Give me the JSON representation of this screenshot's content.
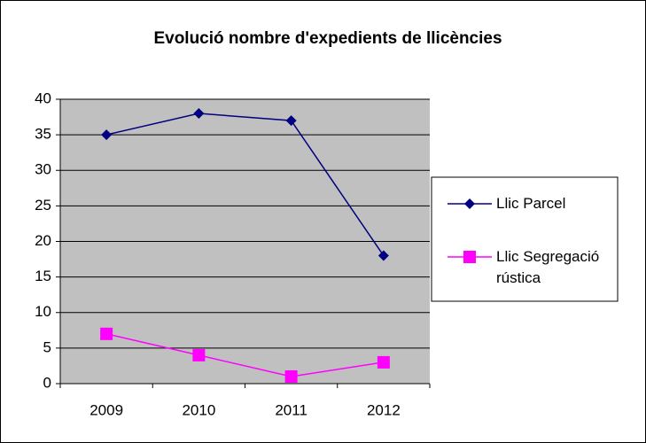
{
  "chart_data": {
    "type": "line",
    "title": "Evolució nombre d'expedients de llicències",
    "categories": [
      "2009",
      "2010",
      "2011",
      "2012"
    ],
    "series": [
      {
        "name": "Llic Parcel",
        "color": "#000080",
        "marker": "diamond",
        "values": [
          35,
          38,
          37,
          18
        ]
      },
      {
        "name": "Llic Segregació rústica",
        "color": "#ff00ff",
        "marker": "square",
        "values": [
          7,
          4,
          1,
          3
        ]
      }
    ],
    "ylim": [
      0,
      40
    ],
    "yticks": [
      0,
      5,
      10,
      15,
      20,
      25,
      30,
      35,
      40
    ],
    "grid": true,
    "legend": "right"
  }
}
